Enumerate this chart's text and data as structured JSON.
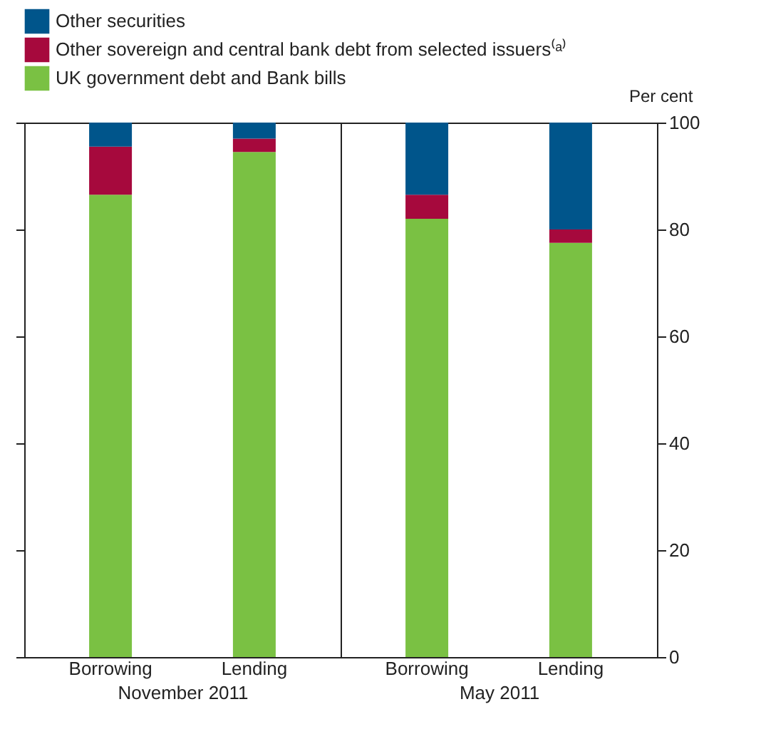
{
  "chart_data": [
    {
      "type": "bar",
      "stacked": true,
      "xlabel": "November 2011",
      "categories": [
        "Borrowing",
        "Lending"
      ],
      "ylim": [
        0,
        100
      ],
      "yticks": [
        0,
        20,
        40,
        60,
        80,
        100
      ],
      "tick_labels": "x",
      "grid": false,
      "legend": "top",
      "series": [
        {
          "name": "UK government debt and Bank bills",
          "color": "#7ac143",
          "values": [
            86.5,
            94.5
          ]
        },
        {
          "name": "Other sovereign and central bank debt from selected issuers⁽ᵃ⁾",
          "color": "#a6093d",
          "values": [
            9,
            2.5
          ]
        },
        {
          "name": "Other securities",
          "color": "#00558b",
          "values": [
            4.5,
            3
          ]
        }
      ]
    },
    {
      "type": "bar",
      "stacked": true,
      "xlabel": "May 2011",
      "ylabel": "Per cent",
      "categories": [
        "Borrowing",
        "Lending"
      ],
      "ylim": [
        0,
        100
      ],
      "yticks": [
        0,
        20,
        40,
        60,
        80,
        100
      ],
      "grid": false,
      "legend": false,
      "series": [
        {
          "color": "#7ac143",
          "values": [
            82,
            77.5
          ]
        },
        {
          "color": "#a6093d",
          "values": [
            4.5,
            2.5
          ]
        },
        {
          "color": "#00558b",
          "values": [
            13.5,
            20
          ]
        }
      ]
    }
  ]
}
